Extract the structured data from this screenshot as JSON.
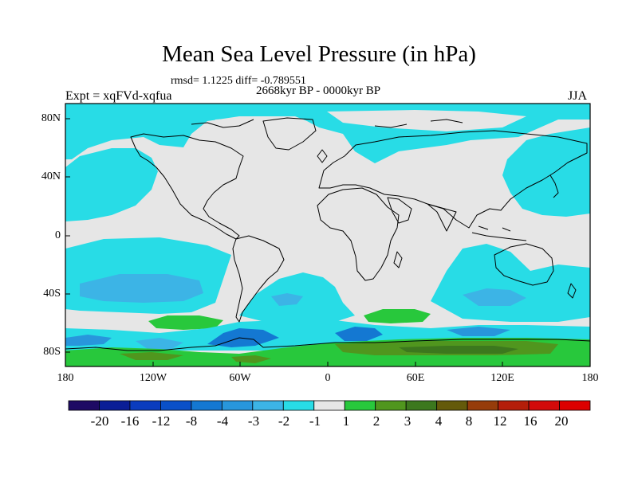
{
  "title": "Mean Sea Level Pressure (in hPa)",
  "stats": "rmsd= 1.1225 diff= -0.789551",
  "period": "2668kyr BP - 0000kyr BP",
  "experiment": "Expt = xqFVd-xqfua",
  "season": "JJA",
  "lat_labels": [
    "80N",
    "40N",
    "0",
    "40S",
    "80S"
  ],
  "lon_labels": [
    "180",
    "120W",
    "60W",
    "0",
    "60E",
    "120E",
    "180"
  ],
  "colorbar": {
    "labels": [
      "-20",
      "-16",
      "-12",
      "-8",
      "-4",
      "-3",
      "-2",
      "-1",
      "1",
      "2",
      "3",
      "4",
      "8",
      "12",
      "16",
      "20"
    ],
    "colors": [
      "#1e0a64",
      "#0a1e96",
      "#0a3cbe",
      "#0a50c8",
      "#1478d2",
      "#2896dc",
      "#3cb4e6",
      "#28dce6",
      "#e6e6e6",
      "#28c83c",
      "#50961e",
      "#3c781e",
      "#645a0a",
      "#963c0a",
      "#b41e0a",
      "#d20a0a",
      "#dc0000"
    ]
  },
  "palette": {
    "neutral": "#e6e6e6",
    "cyan_light": "#28dce6",
    "cyan": "#3cb4e6",
    "blue_mid": "#2896dc",
    "blue": "#1478d2",
    "blue_dark": "#0a50c8",
    "green": "#28c83c",
    "green_dark": "#50961e",
    "olive": "#3c781e"
  }
}
